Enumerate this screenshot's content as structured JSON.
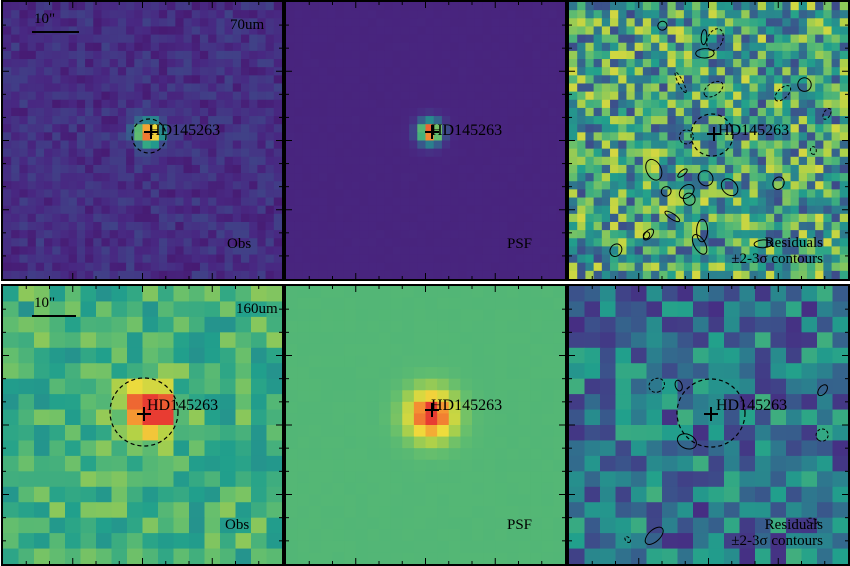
{
  "target": "HD145263",
  "colors": {
    "obs70_bg": "#4a2d8c",
    "psf70_bg": "#4b2a91",
    "psf160_bg": "#8fc27a",
    "peak": "#e8503a"
  },
  "rows": [
    {
      "band": "70um",
      "scale_bar": "10\"",
      "panels": [
        {
          "kind": "obs",
          "label": "Obs"
        },
        {
          "kind": "psf",
          "label": "PSF"
        },
        {
          "kind": "res",
          "label_line1": "Residuals",
          "label_line2": "±2-3σ contours"
        }
      ]
    },
    {
      "band": "160um",
      "scale_bar": "10\"",
      "panels": [
        {
          "kind": "obs",
          "label": "Obs"
        },
        {
          "kind": "psf",
          "label": "PSF"
        },
        {
          "kind": "res",
          "label_line1": "Residuals",
          "label_line2": "±2-3σ contours"
        }
      ]
    }
  ]
}
